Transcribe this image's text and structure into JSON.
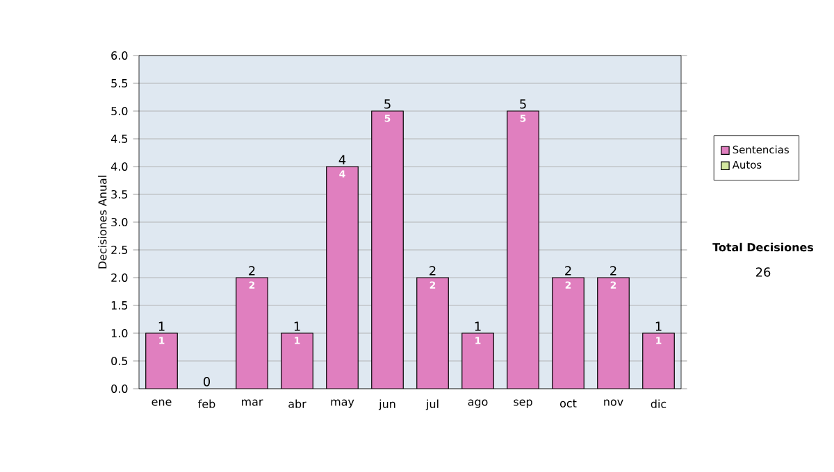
{
  "chart_data": {
    "type": "bar",
    "stacked": true,
    "ylabel": "Decisiones Anual",
    "categories": [
      "ene",
      "feb",
      "mar",
      "abr",
      "may",
      "jun",
      "jul",
      "ago",
      "sep",
      "oct",
      "nov",
      "dic"
    ],
    "series": [
      {
        "name": "Sentencias",
        "color": "#e07fbf",
        "values": [
          1,
          0,
          2,
          1,
          4,
          5,
          2,
          1,
          5,
          2,
          2,
          1
        ],
        "value_labels": [
          "1",
          null,
          "2",
          "1",
          "4",
          "5",
          "2",
          "1",
          "5",
          "2",
          "2",
          "1"
        ]
      },
      {
        "name": "Autos",
        "color": "#d4e8a0",
        "values": [
          0,
          0,
          0,
          0,
          0,
          0,
          0,
          0,
          0,
          0,
          0,
          0
        ]
      }
    ],
    "totals": [
      "1",
      "0",
      "2",
      "1",
      "4",
      "5",
      "2",
      "1",
      "5",
      "2",
      "2",
      "1"
    ],
    "ylim": [
      0,
      6
    ],
    "yticks": [
      {
        "value": 0,
        "label": "0.0"
      },
      {
        "value": 0.5,
        "label": "0.5"
      },
      {
        "value": 1,
        "label": "1.0"
      },
      {
        "value": 1.5,
        "label": "1.5"
      },
      {
        "value": 2,
        "label": "2.0"
      },
      {
        "value": 2.5,
        "label": "2.5"
      },
      {
        "value": 3,
        "label": "3.0"
      },
      {
        "value": 3.5,
        "label": "3.5"
      },
      {
        "value": 4,
        "label": "4.0"
      },
      {
        "value": 4.5,
        "label": "4.5"
      },
      {
        "value": 5,
        "label": "5.0"
      },
      {
        "value": 5.5,
        "label": "5.5"
      },
      {
        "value": 6,
        "label": "6.0"
      }
    ],
    "grid": "y",
    "legend": "right",
    "annotations": [
      "Total Decisiones",
      "26"
    ]
  }
}
